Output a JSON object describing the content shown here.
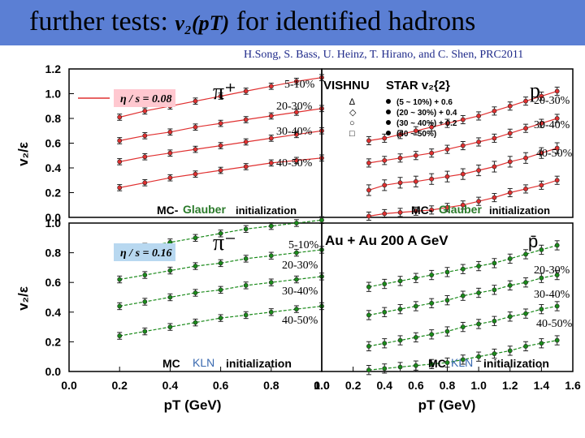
{
  "slide": {
    "title_prefix": "further tests:",
    "title_math": "v₂(pT)",
    "title_suffix": "for identified hadrons",
    "credit": "H.Song, S. Bass, U. Heinz, T. Hirano, and  C. Shen, PRC2011"
  },
  "labels": {
    "ylabel_top": "v₂/ε",
    "ylabel_bottom": "v₂/ε",
    "xlabel": "pT (GeV)",
    "eta_top": "η / s = 0.08",
    "eta_bottom": "η / s = 0.16",
    "vishnu": "VISHNU",
    "star": "STAR v₂{2}",
    "collision": "Au + Au  200 A GeV",
    "init_top_a": "MC-",
    "init_top_b": "Glauber",
    "init_top_c": "initialization",
    "init_bot_a": "MC",
    "init_bot_b": "KLN",
    "init_bot_c": "initialization",
    "star_legend": [
      "(5 ~ 10%) + 0.6",
      "(20 ~ 30%) + 0.4",
      "(30 ~ 40%) + 0.2",
      "(40 ~ 50%)"
    ],
    "star_legend_side": [
      "∆",
      "◇",
      "○",
      "□"
    ],
    "pion_plus": "π⁺",
    "pion_minus": "π⁻",
    "proton": "p",
    "antiproton": "p̄",
    "centralities": [
      "5-10%",
      "20-30%",
      "30-40%",
      "40-50%"
    ]
  },
  "colors": {
    "title_bar": "#5b7fd4",
    "credit": "#1f2a8a",
    "line_top": "#e03030",
    "line_bottom": "#1a8a1a",
    "eta_box": "#ffc8d0",
    "eta_box_bottom": "#b8d8f0",
    "data_points": "#222222",
    "init_accent": "#2a7a2a",
    "kln_accent": "#3a6ab0"
  },
  "chart_data": [
    {
      "name": "top-left",
      "type": "scatter",
      "particle": "pi+",
      "xlim": [
        0.0,
        1.0
      ],
      "ylim": [
        0.0,
        1.2
      ],
      "yticks": [
        0.0,
        0.2,
        0.4,
        0.6,
        0.8,
        1.0,
        1.2
      ],
      "series": [
        {
          "name": "5-10%",
          "x": [
            0.2,
            0.3,
            0.4,
            0.5,
            0.6,
            0.7,
            0.8,
            0.9,
            1.0
          ],
          "y": [
            0.81,
            0.86,
            0.9,
            0.94,
            0.98,
            1.02,
            1.06,
            1.1,
            1.13
          ],
          "yerr": 0.012
        },
        {
          "name": "20-30%",
          "x": [
            0.2,
            0.3,
            0.4,
            0.5,
            0.6,
            0.7,
            0.8,
            0.9,
            1.0
          ],
          "y": [
            0.62,
            0.66,
            0.69,
            0.73,
            0.76,
            0.79,
            0.82,
            0.85,
            0.88
          ],
          "yerr": 0.012
        },
        {
          "name": "30-40%",
          "x": [
            0.2,
            0.3,
            0.4,
            0.5,
            0.6,
            0.7,
            0.8,
            0.9,
            1.0
          ],
          "y": [
            0.45,
            0.49,
            0.52,
            0.55,
            0.58,
            0.61,
            0.64,
            0.67,
            0.7
          ],
          "yerr": 0.012
        },
        {
          "name": "40-50%",
          "x": [
            0.2,
            0.3,
            0.4,
            0.5,
            0.6,
            0.7,
            0.8,
            0.9,
            1.0
          ],
          "y": [
            0.24,
            0.28,
            0.32,
            0.35,
            0.38,
            0.41,
            0.44,
            0.46,
            0.48
          ],
          "yerr": 0.012
        }
      ]
    },
    {
      "name": "top-right",
      "type": "scatter",
      "particle": "p",
      "xlim": [
        0.0,
        1.6
      ],
      "ylim": [
        0.0,
        1.2
      ],
      "series": [
        {
          "name": "20-30%",
          "x": [
            0.3,
            0.4,
            0.5,
            0.6,
            0.7,
            0.8,
            0.9,
            1.0,
            1.1,
            1.2,
            1.3,
            1.4,
            1.5
          ],
          "y": [
            0.62,
            0.64,
            0.67,
            0.7,
            0.73,
            0.76,
            0.79,
            0.82,
            0.86,
            0.9,
            0.94,
            0.98,
            1.02
          ],
          "yerr": 0.02
        },
        {
          "name": "30-40%",
          "x": [
            0.3,
            0.4,
            0.5,
            0.6,
            0.7,
            0.8,
            0.9,
            1.0,
            1.1,
            1.2,
            1.3,
            1.4,
            1.5
          ],
          "y": [
            0.44,
            0.46,
            0.48,
            0.5,
            0.52,
            0.55,
            0.58,
            0.61,
            0.64,
            0.68,
            0.72,
            0.76,
            0.8
          ],
          "yerr": 0.02
        },
        {
          "name": "40-50%",
          "x": [
            0.3,
            0.4,
            0.5,
            0.6,
            0.7,
            0.8,
            0.9,
            1.0,
            1.1,
            1.2,
            1.3,
            1.4,
            1.5
          ],
          "y": [
            0.22,
            0.26,
            0.28,
            0.29,
            0.31,
            0.33,
            0.35,
            0.38,
            0.41,
            0.45,
            0.48,
            0.52,
            0.56
          ],
          "yerr": 0.03
        },
        {
          "name": "5-10%",
          "x": [
            0.3,
            0.4,
            0.5,
            0.6,
            0.7,
            0.8,
            0.9,
            1.0,
            1.1,
            1.2,
            1.3,
            1.4,
            1.5
          ],
          "y": [
            0.01,
            0.03,
            0.04,
            0.05,
            0.06,
            0.08,
            0.1,
            0.13,
            0.16,
            0.2,
            0.23,
            0.26,
            0.3
          ],
          "yerr": 0.02
        }
      ]
    },
    {
      "name": "bottom-left",
      "type": "scatter",
      "particle": "pi-",
      "xlim": [
        0.0,
        1.0
      ],
      "ylim": [
        0.0,
        1.0
      ],
      "yticks": [
        0.0,
        0.2,
        0.4,
        0.6,
        0.8,
        1.0
      ],
      "xticks": [
        0.0,
        0.2,
        0.4,
        0.6,
        0.8,
        1.0
      ],
      "series": [
        {
          "name": "5-10%",
          "x": [
            0.2,
            0.3,
            0.4,
            0.5,
            0.6,
            0.7,
            0.8,
            0.9,
            1.0
          ],
          "y": [
            0.8,
            0.84,
            0.87,
            0.9,
            0.93,
            0.96,
            0.98,
            1.0,
            1.02
          ],
          "yerr": 0.012
        },
        {
          "name": "20-30%",
          "x": [
            0.2,
            0.3,
            0.4,
            0.5,
            0.6,
            0.7,
            0.8,
            0.9,
            1.0
          ],
          "y": [
            0.62,
            0.65,
            0.68,
            0.71,
            0.73,
            0.76,
            0.78,
            0.8,
            0.82
          ],
          "yerr": 0.012
        },
        {
          "name": "30-40%",
          "x": [
            0.2,
            0.3,
            0.4,
            0.5,
            0.6,
            0.7,
            0.8,
            0.9,
            1.0
          ],
          "y": [
            0.44,
            0.47,
            0.5,
            0.53,
            0.55,
            0.58,
            0.6,
            0.62,
            0.64
          ],
          "yerr": 0.012
        },
        {
          "name": "40-50%",
          "x": [
            0.2,
            0.3,
            0.4,
            0.5,
            0.6,
            0.7,
            0.8,
            0.9,
            1.0
          ],
          "y": [
            0.24,
            0.27,
            0.3,
            0.33,
            0.36,
            0.38,
            0.4,
            0.42,
            0.44
          ],
          "yerr": 0.012
        }
      ]
    },
    {
      "name": "bottom-right",
      "type": "scatter",
      "particle": "p",
      "xlim": [
        0.0,
        1.6
      ],
      "ylim": [
        0.0,
        1.0
      ],
      "xticks": [
        0.0,
        0.2,
        0.4,
        0.6,
        0.8,
        1.0,
        1.2,
        1.4,
        1.6
      ],
      "series": [
        {
          "name": "20-30%",
          "x": [
            0.3,
            0.4,
            0.5,
            0.6,
            0.7,
            0.8,
            0.9,
            1.0,
            1.1,
            1.2,
            1.3,
            1.4,
            1.5
          ],
          "y": [
            0.57,
            0.59,
            0.61,
            0.63,
            0.65,
            0.67,
            0.69,
            0.71,
            0.73,
            0.76,
            0.79,
            0.82,
            0.85
          ],
          "yerr": 0.02
        },
        {
          "name": "30-40%",
          "x": [
            0.3,
            0.4,
            0.5,
            0.6,
            0.7,
            0.8,
            0.9,
            1.0,
            1.1,
            1.2,
            1.3,
            1.4,
            1.5
          ],
          "y": [
            0.38,
            0.4,
            0.42,
            0.44,
            0.46,
            0.48,
            0.51,
            0.53,
            0.55,
            0.58,
            0.6,
            0.63,
            0.65
          ],
          "yerr": 0.02
        },
        {
          "name": "40-50%",
          "x": [
            0.3,
            0.4,
            0.5,
            0.6,
            0.7,
            0.8,
            0.9,
            1.0,
            1.1,
            1.2,
            1.3,
            1.4,
            1.5
          ],
          "y": [
            0.17,
            0.19,
            0.21,
            0.23,
            0.25,
            0.27,
            0.3,
            0.32,
            0.34,
            0.37,
            0.39,
            0.42,
            0.44
          ],
          "yerr": 0.02
        },
        {
          "name": "5-10%",
          "x": [
            0.3,
            0.4,
            0.5,
            0.6,
            0.7,
            0.8,
            0.9,
            1.0,
            1.1,
            1.2,
            1.3,
            1.4,
            1.5
          ],
          "y": [
            0.01,
            0.02,
            0.03,
            0.04,
            0.05,
            0.06,
            0.08,
            0.1,
            0.12,
            0.14,
            0.17,
            0.19,
            0.21
          ],
          "yerr": 0.02
        }
      ]
    }
  ]
}
